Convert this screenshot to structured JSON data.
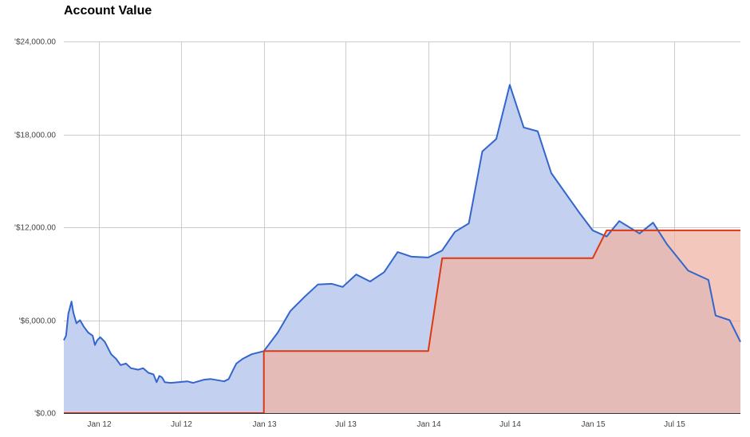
{
  "chart_data": {
    "type": "area",
    "title": "Account Value",
    "xlabel": "",
    "ylabel": "",
    "ylim": [
      0,
      24000
    ],
    "y_ticks": [
      0,
      6000,
      12000,
      18000,
      24000
    ],
    "y_tick_labels": [
      "'$0.00",
      "'$6,000.00",
      "'$12,000.00",
      "'$18,000.00",
      "'$24,000.00"
    ],
    "xlim": [
      "2011-10-15",
      "2015-11-25"
    ],
    "x_ticks": [
      "2012-01-01",
      "2012-07-01",
      "2013-01-01",
      "2013-07-01",
      "2014-01-01",
      "2014-07-01",
      "2015-01-01",
      "2015-07-01"
    ],
    "x_tick_labels": [
      "Jan 12",
      "Jul 12",
      "Jan 13",
      "Jul 13",
      "Jan 14",
      "Jul 14",
      "Jan 15",
      "Jul 15"
    ],
    "grid": true,
    "legend": "none",
    "series": [
      {
        "color": "#3366cc",
        "fill": "#c3d0ef",
        "points": [
          [
            "2011-10-15",
            4700
          ],
          [
            "2011-10-20",
            5000
          ],
          [
            "2011-10-25",
            6400
          ],
          [
            "2011-11-01",
            7200
          ],
          [
            "2011-11-05",
            6500
          ],
          [
            "2011-11-12",
            5800
          ],
          [
            "2011-11-20",
            6000
          ],
          [
            "2011-11-28",
            5600
          ],
          [
            "2011-12-08",
            5200
          ],
          [
            "2011-12-18",
            5000
          ],
          [
            "2011-12-23",
            4400
          ],
          [
            "2011-12-28",
            4700
          ],
          [
            "2012-01-04",
            4900
          ],
          [
            "2012-01-14",
            4600
          ],
          [
            "2012-01-28",
            3800
          ],
          [
            "2012-02-08",
            3500
          ],
          [
            "2012-02-18",
            3100
          ],
          [
            "2012-03-01",
            3200
          ],
          [
            "2012-03-12",
            2900
          ],
          [
            "2012-03-28",
            2800
          ],
          [
            "2012-04-08",
            2900
          ],
          [
            "2012-04-20",
            2600
          ],
          [
            "2012-05-01",
            2500
          ],
          [
            "2012-05-08",
            2000
          ],
          [
            "2012-05-14",
            2400
          ],
          [
            "2012-05-20",
            2300
          ],
          [
            "2012-05-26",
            2000
          ],
          [
            "2012-06-08",
            1950
          ],
          [
            "2012-06-25",
            2000
          ],
          [
            "2012-07-15",
            2050
          ],
          [
            "2012-07-28",
            1950
          ],
          [
            "2012-08-20",
            2150
          ],
          [
            "2012-09-05",
            2200
          ],
          [
            "2012-09-25",
            2100
          ],
          [
            "2012-10-05",
            2050
          ],
          [
            "2012-10-15",
            2200
          ],
          [
            "2012-10-25",
            2800
          ],
          [
            "2012-11-01",
            3200
          ],
          [
            "2012-11-15",
            3500
          ],
          [
            "2012-12-05",
            3800
          ],
          [
            "2013-01-01",
            4000
          ],
          [
            "2013-02-01",
            5200
          ],
          [
            "2013-03-01",
            6600
          ],
          [
            "2013-04-01",
            7500
          ],
          [
            "2013-05-01",
            8300
          ],
          [
            "2013-06-01",
            8350
          ],
          [
            "2013-06-25",
            8150
          ],
          [
            "2013-07-25",
            8950
          ],
          [
            "2013-08-25",
            8500
          ],
          [
            "2013-09-25",
            9100
          ],
          [
            "2013-10-25",
            10400
          ],
          [
            "2013-11-25",
            10100
          ],
          [
            "2014-01-01",
            10050
          ],
          [
            "2014-02-01",
            10500
          ],
          [
            "2014-03-01",
            11700
          ],
          [
            "2014-04-01",
            12250
          ],
          [
            "2014-05-01",
            16900
          ],
          [
            "2014-06-01",
            17700
          ],
          [
            "2014-07-01",
            21200
          ],
          [
            "2014-08-01",
            18450
          ],
          [
            "2014-09-01",
            18200
          ],
          [
            "2014-10-01",
            15500
          ],
          [
            "2014-12-01",
            13000
          ],
          [
            "2015-01-01",
            11800
          ],
          [
            "2015-02-01",
            11400
          ],
          [
            "2015-03-01",
            12400
          ],
          [
            "2015-04-15",
            11600
          ],
          [
            "2015-05-15",
            12300
          ],
          [
            "2015-06-15",
            10900
          ],
          [
            "2015-08-01",
            9200
          ],
          [
            "2015-09-15",
            8600
          ],
          [
            "2015-10-01",
            6300
          ],
          [
            "2015-11-01",
            6000
          ],
          [
            "2015-11-25",
            4600
          ]
        ]
      },
      {
        "color": "#dc3912",
        "fill": "#f0b4a6",
        "points": [
          [
            "2011-10-15",
            0
          ],
          [
            "2013-01-01",
            0
          ],
          [
            "2013-01-01",
            4000
          ],
          [
            "2014-01-01",
            4000
          ],
          [
            "2014-02-01",
            10000
          ],
          [
            "2015-01-01",
            10000
          ],
          [
            "2015-02-01",
            11800
          ],
          [
            "2015-11-25",
            11800
          ]
        ]
      }
    ]
  }
}
